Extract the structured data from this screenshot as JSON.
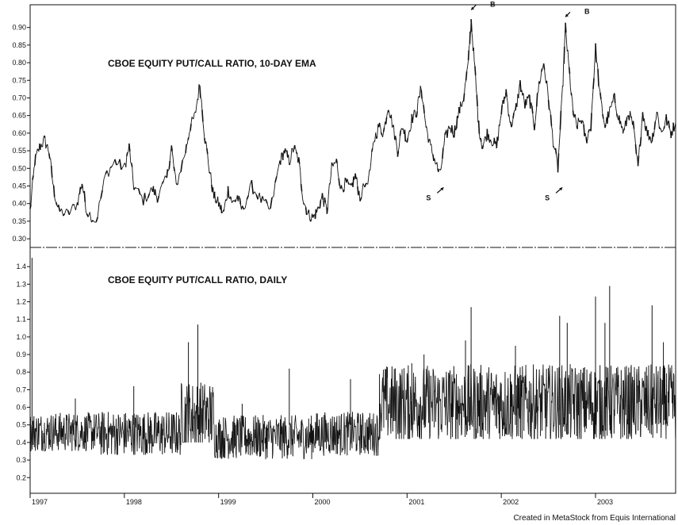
{
  "credit": "Created in MetaStock from Equis International",
  "x_axis": {
    "years": [
      "1997",
      "1998",
      "1999",
      "2000",
      "2001",
      "2002",
      "2003"
    ]
  },
  "chart_data": [
    {
      "type": "line",
      "title": "CBOE EQUITY PUT/CALL RATIO, 10-DAY EMA",
      "y_ticks": [
        "0.30",
        "0.35",
        "0.40",
        "0.45",
        "0.50",
        "0.55",
        "0.60",
        "0.65",
        "0.70",
        "0.75",
        "0.80",
        "0.85",
        "0.90"
      ],
      "ylim": [
        0.28,
        0.96
      ],
      "x_range": [
        1997.0,
        2003.85
      ],
      "series": [
        {
          "points": [
            [
              1997.0,
              0.38
            ],
            [
              1997.05,
              0.52
            ],
            [
              1997.1,
              0.56
            ],
            [
              1997.15,
              0.58
            ],
            [
              1997.2,
              0.55
            ],
            [
              1997.25,
              0.44
            ],
            [
              1997.3,
              0.38
            ],
            [
              1997.4,
              0.37
            ],
            [
              1997.5,
              0.4
            ],
            [
              1997.55,
              0.46
            ],
            [
              1997.6,
              0.38
            ],
            [
              1997.7,
              0.35
            ],
            [
              1997.8,
              0.48
            ],
            [
              1997.9,
              0.52
            ],
            [
              1998.0,
              0.5
            ],
            [
              1998.05,
              0.56
            ],
            [
              1998.1,
              0.45
            ],
            [
              1998.2,
              0.41
            ],
            [
              1998.3,
              0.44
            ],
            [
              1998.35,
              0.42
            ],
            [
              1998.45,
              0.47
            ],
            [
              1998.5,
              0.56
            ],
            [
              1998.55,
              0.45
            ],
            [
              1998.65,
              0.55
            ],
            [
              1998.7,
              0.62
            ],
            [
              1998.75,
              0.65
            ],
            [
              1998.8,
              0.74
            ],
            [
              1998.85,
              0.6
            ],
            [
              1998.9,
              0.5
            ],
            [
              1998.95,
              0.42
            ],
            [
              1999.0,
              0.4
            ],
            [
              1999.05,
              0.37
            ],
            [
              1999.1,
              0.44
            ],
            [
              1999.15,
              0.4
            ],
            [
              1999.2,
              0.42
            ],
            [
              1999.25,
              0.38
            ],
            [
              1999.35,
              0.45
            ],
            [
              1999.45,
              0.41
            ],
            [
              1999.55,
              0.38
            ],
            [
              1999.65,
              0.52
            ],
            [
              1999.7,
              0.55
            ],
            [
              1999.75,
              0.52
            ],
            [
              1999.8,
              0.56
            ],
            [
              1999.85,
              0.52
            ],
            [
              1999.9,
              0.41
            ],
            [
              1999.95,
              0.37
            ],
            [
              2000.0,
              0.36
            ],
            [
              2000.05,
              0.38
            ],
            [
              2000.1,
              0.42
            ],
            [
              2000.15,
              0.38
            ],
            [
              2000.2,
              0.5
            ],
            [
              2000.25,
              0.52
            ],
            [
              2000.3,
              0.44
            ],
            [
              2000.35,
              0.46
            ],
            [
              2000.4,
              0.44
            ],
            [
              2000.45,
              0.48
            ],
            [
              2000.5,
              0.42
            ],
            [
              2000.6,
              0.48
            ],
            [
              2000.65,
              0.58
            ],
            [
              2000.7,
              0.62
            ],
            [
              2000.75,
              0.6
            ],
            [
              2000.8,
              0.68
            ],
            [
              2000.85,
              0.62
            ],
            [
              2000.9,
              0.55
            ],
            [
              2000.95,
              0.62
            ],
            [
              2001.0,
              0.58
            ],
            [
              2001.05,
              0.64
            ],
            [
              2001.1,
              0.66
            ],
            [
              2001.15,
              0.73
            ],
            [
              2001.2,
              0.62
            ],
            [
              2001.25,
              0.56
            ],
            [
              2001.3,
              0.52
            ],
            [
              2001.35,
              0.48
            ],
            [
              2001.4,
              0.58
            ],
            [
              2001.45,
              0.62
            ],
            [
              2001.5,
              0.6
            ],
            [
              2001.55,
              0.66
            ],
            [
              2001.6,
              0.7
            ],
            [
              2001.65,
              0.8
            ],
            [
              2001.68,
              0.92
            ],
            [
              2001.72,
              0.78
            ],
            [
              2001.76,
              0.62
            ],
            [
              2001.8,
              0.56
            ],
            [
              2001.85,
              0.6
            ],
            [
              2001.9,
              0.58
            ],
            [
              2001.95,
              0.56
            ],
            [
              2002.0,
              0.66
            ],
            [
              2002.05,
              0.72
            ],
            [
              2002.1,
              0.62
            ],
            [
              2002.15,
              0.66
            ],
            [
              2002.2,
              0.74
            ],
            [
              2002.25,
              0.68
            ],
            [
              2002.3,
              0.7
            ],
            [
              2002.35,
              0.62
            ],
            [
              2002.4,
              0.74
            ],
            [
              2002.45,
              0.8
            ],
            [
              2002.5,
              0.7
            ],
            [
              2002.55,
              0.58
            ],
            [
              2002.6,
              0.5
            ],
            [
              2002.65,
              0.72
            ],
            [
              2002.68,
              0.9
            ],
            [
              2002.72,
              0.78
            ],
            [
              2002.76,
              0.66
            ],
            [
              2002.8,
              0.62
            ],
            [
              2002.85,
              0.64
            ],
            [
              2002.9,
              0.58
            ],
            [
              2002.95,
              0.62
            ],
            [
              2003.0,
              0.84
            ],
            [
              2003.05,
              0.7
            ],
            [
              2003.1,
              0.62
            ],
            [
              2003.15,
              0.66
            ],
            [
              2003.2,
              0.7
            ],
            [
              2003.25,
              0.64
            ],
            [
              2003.3,
              0.6
            ],
            [
              2003.35,
              0.66
            ],
            [
              2003.4,
              0.62
            ],
            [
              2003.45,
              0.5
            ],
            [
              2003.5,
              0.66
            ],
            [
              2003.55,
              0.6
            ],
            [
              2003.6,
              0.58
            ],
            [
              2003.65,
              0.66
            ],
            [
              2003.7,
              0.6
            ],
            [
              2003.75,
              0.64
            ],
            [
              2003.8,
              0.6
            ],
            [
              2003.85,
              0.63
            ]
          ]
        }
      ],
      "annotations": [
        {
          "text": "B",
          "x": 2001.68,
          "y": 0.95,
          "arrow": "down-left"
        },
        {
          "text": "B",
          "x": 2002.68,
          "y": 0.93,
          "arrow": "down-left"
        },
        {
          "text": "S",
          "x": 2001.32,
          "y": 0.43,
          "arrow": "up-right"
        },
        {
          "text": "S",
          "x": 2002.58,
          "y": 0.43,
          "arrow": "up-right"
        }
      ]
    },
    {
      "type": "line",
      "title": "CBOE EQUITY PUT/CALL RATIO, DAILY",
      "y_ticks": [
        "0.2",
        "0.3",
        "0.4",
        "0.5",
        "0.6",
        "0.7",
        "0.8",
        "0.9",
        "1.0",
        "1.1",
        "1.2",
        "1.3",
        "1.4"
      ],
      "ylim": [
        0.12,
        1.5
      ],
      "x_range": [
        1997.0,
        2003.85
      ],
      "series": [
        {
          "segments": [
            [
              1997.0,
              1997.75,
              0.35,
              0.6,
              0.46
            ],
            [
              1997.75,
              1998.6,
              0.33,
              0.62,
              0.45
            ],
            [
              1998.6,
              1998.95,
              0.4,
              0.85,
              0.55
            ],
            [
              1998.95,
              2000.0,
              0.3,
              0.58,
              0.43
            ],
            [
              2000.0,
              2000.7,
              0.32,
              0.6,
              0.45
            ],
            [
              2000.7,
              2003.85,
              0.42,
              0.92,
              0.62
            ]
          ],
          "spikes": [
            [
              1997.02,
              1.45
            ],
            [
              1997.48,
              0.65
            ],
            [
              1998.1,
              0.72
            ],
            [
              1998.68,
              0.97
            ],
            [
              1998.78,
              1.07
            ],
            [
              1999.25,
              0.62
            ],
            [
              1999.75,
              0.82
            ],
            [
              2000.4,
              0.76
            ],
            [
              2001.05,
              0.85
            ],
            [
              2001.18,
              0.9
            ],
            [
              2001.68,
              1.17
            ],
            [
              2001.62,
              0.98
            ],
            [
              2002.15,
              0.95
            ],
            [
              2002.62,
              1.12
            ],
            [
              2002.7,
              1.08
            ],
            [
              2003.0,
              1.23
            ],
            [
              2003.1,
              1.08
            ],
            [
              2003.15,
              1.29
            ],
            [
              2003.6,
              1.18
            ],
            [
              2003.72,
              0.97
            ]
          ]
        }
      ]
    }
  ]
}
